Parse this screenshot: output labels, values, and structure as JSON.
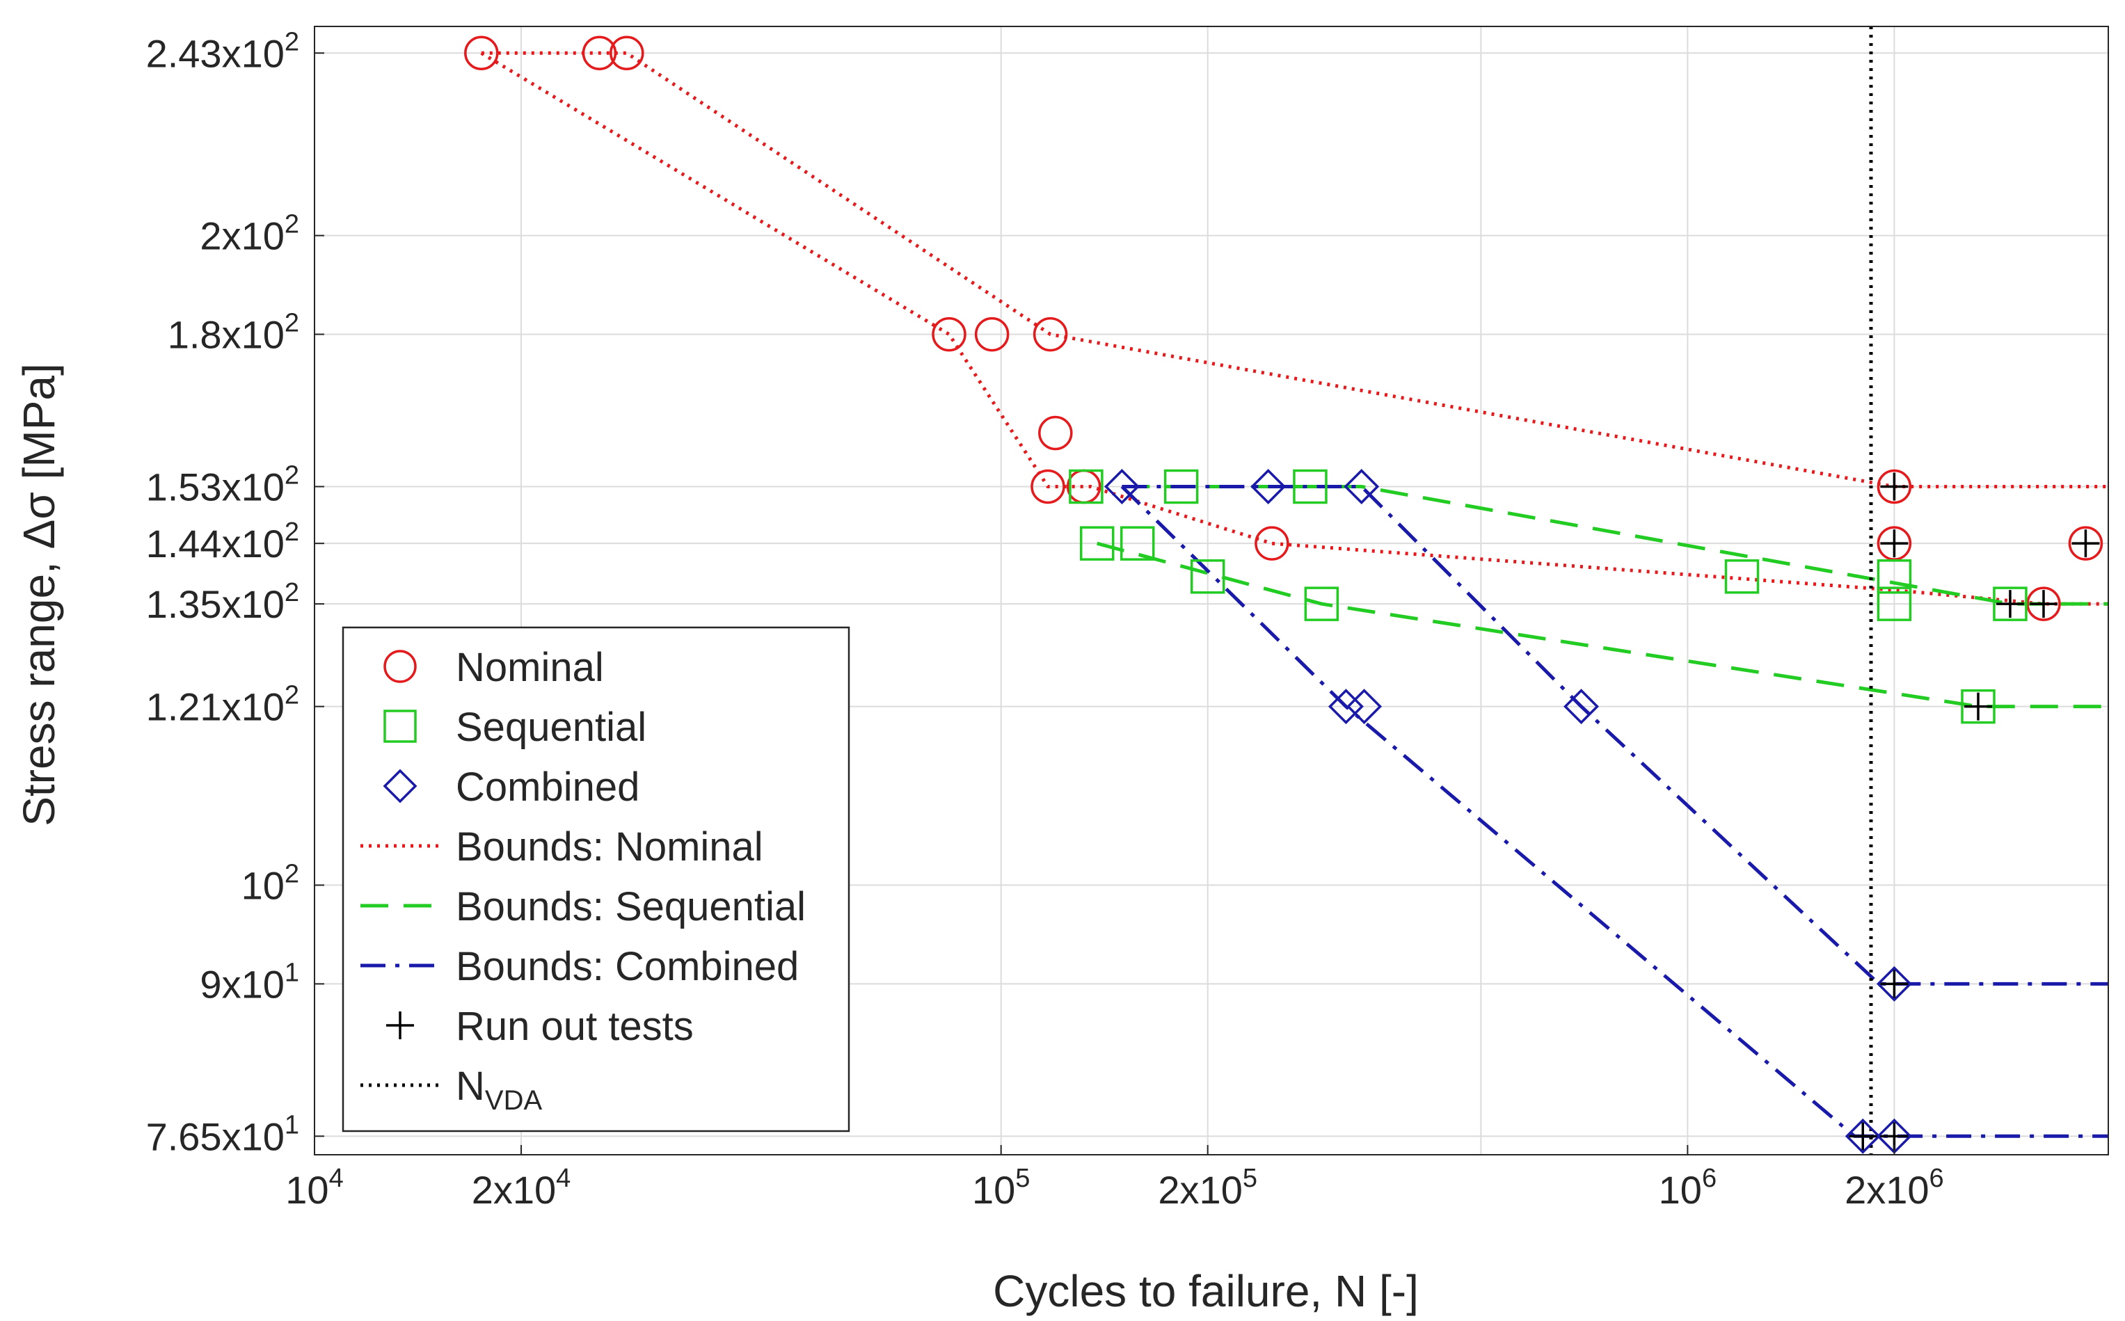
{
  "chart_data": {
    "type": "scatter",
    "title": "",
    "xlabel": "Cycles to failure, N [-]",
    "ylabel": "Stress range, Δσ [MPa]",
    "xscale": "log",
    "yscale": "log",
    "xlim": [
      10000,
      4100000
    ],
    "ylim": [
      75,
      250
    ],
    "grid": true,
    "legend_position": "lower-left",
    "xticks": [
      {
        "value": 10000,
        "base": "10",
        "exp": "4"
      },
      {
        "value": 20000,
        "base": "2x10",
        "exp": "4"
      },
      {
        "value": 100000,
        "base": "10",
        "exp": "5"
      },
      {
        "value": 200000,
        "base": "2x10",
        "exp": "5"
      },
      {
        "value": 1000000,
        "base": "10",
        "exp": "6"
      },
      {
        "value": 2000000,
        "base": "2x10",
        "exp": "6"
      }
    ],
    "yticks": [
      {
        "value": 76.5,
        "base": "7.65x10",
        "exp": "1"
      },
      {
        "value": 90,
        "base": "9x10",
        "exp": "1"
      },
      {
        "value": 100,
        "base": "10",
        "exp": "2"
      },
      {
        "value": 121,
        "base": "1.21x10",
        "exp": "2"
      },
      {
        "value": 135,
        "base": "1.35x10",
        "exp": "2"
      },
      {
        "value": 144,
        "base": "1.44x10",
        "exp": "2"
      },
      {
        "value": 153,
        "base": "1.53x10",
        "exp": "2"
      },
      {
        "value": 180,
        "base": "1.8x10",
        "exp": "2"
      },
      {
        "value": 200,
        "base": "2x10",
        "exp": "2"
      },
      {
        "value": 243,
        "base": "2.43x10",
        "exp": "2"
      }
    ],
    "xgrid_extra": [
      500000
    ],
    "series": [
      {
        "name": "Nominal",
        "kind": "marker",
        "marker": "circle",
        "color": "#e41a1c",
        "points": [
          [
            17500,
            243
          ],
          [
            26000,
            243
          ],
          [
            28500,
            243
          ],
          [
            84000,
            180
          ],
          [
            97000,
            180
          ],
          [
            118000,
            180
          ],
          [
            120000,
            162
          ],
          [
            117000,
            153
          ],
          [
            132000,
            153
          ],
          [
            248000,
            144
          ],
          [
            2000000,
            153
          ],
          [
            2000000,
            144
          ],
          [
            3300000,
            135
          ],
          [
            3800000,
            144
          ]
        ]
      },
      {
        "name": "Sequential",
        "kind": "marker",
        "marker": "square",
        "color": "#22cc22",
        "points": [
          [
            133000,
            153
          ],
          [
            138000,
            144
          ],
          [
            158000,
            144
          ],
          [
            183000,
            153
          ],
          [
            200000,
            139
          ],
          [
            282000,
            153
          ],
          [
            293000,
            135
          ],
          [
            1200000,
            139
          ],
          [
            2000000,
            139
          ],
          [
            2000000,
            135
          ],
          [
            2650000,
            121
          ],
          [
            2950000,
            135
          ]
        ]
      },
      {
        "name": "Combined",
        "kind": "marker",
        "marker": "diamond",
        "color": "#1a1aaa",
        "points": [
          [
            150000,
            153
          ],
          [
            245000,
            153
          ],
          [
            318000,
            121
          ],
          [
            335000,
            153
          ],
          [
            338000,
            121
          ],
          [
            700000,
            121
          ],
          [
            1800000,
            76.5
          ],
          [
            2000000,
            90
          ],
          [
            2000000,
            76.5
          ]
        ]
      },
      {
        "name": "Bounds: Nominal",
        "kind": "line",
        "dash": "dotted",
        "color": "#e41a1c",
        "segments": [
          [
            [
              17500,
              243
            ],
            [
              28500,
              243
            ],
            [
              118000,
              180
            ],
            [
              2000000,
              153
            ],
            [
              4100000,
              153
            ]
          ],
          [
            [
              17500,
              243
            ],
            [
              84000,
              180
            ],
            [
              117000,
              153
            ],
            [
              135000,
              153
            ],
            [
              248000,
              144
            ],
            [
              2000000,
              137
            ],
            [
              3300000,
              135
            ],
            [
              4100000,
              135
            ]
          ]
        ]
      },
      {
        "name": "Bounds: Sequential",
        "kind": "line",
        "dash": "dashed",
        "color": "#22cc22",
        "segments": [
          [
            [
              150000,
              153
            ],
            [
              335000,
              153
            ],
            [
              2950000,
              135
            ],
            [
              4100000,
              135
            ]
          ],
          [
            [
              138000,
              144
            ],
            [
              293000,
              135
            ],
            [
              2650000,
              121
            ],
            [
              4100000,
              121
            ]
          ]
        ]
      },
      {
        "name": "Bounds: Combined",
        "kind": "line",
        "dash": "dashdot",
        "color": "#1a1aaa",
        "segments": [
          [
            [
              150000,
              153
            ],
            [
              335000,
              153
            ],
            [
              700000,
              121
            ],
            [
              1900000,
              90
            ],
            [
              4100000,
              90
            ]
          ],
          [
            [
              150000,
              153
            ],
            [
              318000,
              121
            ],
            [
              1750000,
              76.5
            ],
            [
              4100000,
              76.5
            ]
          ]
        ]
      },
      {
        "name": "Run out tests",
        "kind": "marker",
        "marker": "plus",
        "color": "#000000",
        "points": [
          [
            2000000,
            153
          ],
          [
            2000000,
            144
          ],
          [
            2950000,
            135
          ],
          [
            3300000,
            135
          ],
          [
            3800000,
            144
          ],
          [
            2650000,
            121
          ],
          [
            2000000,
            90
          ],
          [
            1800000,
            76.5
          ],
          [
            2000000,
            76.5
          ]
        ]
      },
      {
        "name": "N_VDA",
        "kind": "vline",
        "dash": "dotted",
        "color": "#000000",
        "x": 1850000
      }
    ],
    "legend": [
      {
        "label": "Nominal",
        "symbol": "circle",
        "color": "#e41a1c"
      },
      {
        "label": "Sequential",
        "symbol": "square",
        "color": "#22cc22"
      },
      {
        "label": "Combined",
        "symbol": "diamond",
        "color": "#1a1aaa"
      },
      {
        "label": "Bounds: Nominal",
        "symbol": "dotted",
        "color": "#e41a1c"
      },
      {
        "label": "Bounds: Sequential",
        "symbol": "dashed",
        "color": "#22cc22"
      },
      {
        "label": "Bounds: Combined",
        "symbol": "dashdot",
        "color": "#1a1aaa"
      },
      {
        "label": "Run out tests",
        "symbol": "plus",
        "color": "#000000"
      },
      {
        "label": "N",
        "sub": "VDA",
        "symbol": "dotted",
        "color": "#000000"
      }
    ]
  }
}
